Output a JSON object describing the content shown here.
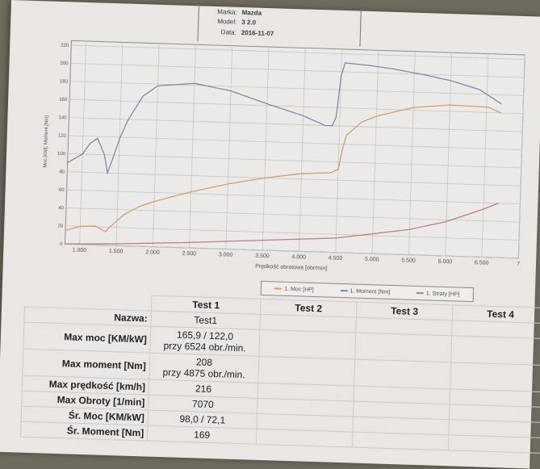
{
  "header": {
    "marka_label": "Marka:",
    "marka_value": "Mazda",
    "model_label": "Model:",
    "model_value": "3 2.0",
    "data_label": "Data:",
    "data_value": "2016-11-07"
  },
  "chart_data": {
    "type": "line",
    "xlabel": "Prędkość obrotowa [obr/min]",
    "ylabel": "Moc [KM], Moment [Nm]",
    "xlim": [
      800,
      7000
    ],
    "ylim": [
      0,
      225
    ],
    "x_ticks": [
      "1.000",
      "1.500",
      "2.000",
      "2.500",
      "3.000",
      "3.500",
      "4.000",
      "4.500",
      "5.000",
      "5.500",
      "6.000",
      "6.500",
      "7"
    ],
    "x_tick_values": [
      1000,
      1500,
      2000,
      2500,
      3000,
      3500,
      4000,
      4500,
      5000,
      5500,
      6000,
      6500,
      7000
    ],
    "y_ticks": [
      "0",
      "20",
      "40",
      "60",
      "80",
      "100",
      "120",
      "140",
      "160",
      "180",
      "200",
      "220"
    ],
    "y_tick_values": [
      0,
      20,
      40,
      60,
      80,
      100,
      120,
      140,
      160,
      180,
      200,
      220
    ],
    "grid": true,
    "legend_position": "bottom",
    "series": [
      {
        "name": "1. Moc [HP]",
        "color": "#c9a070",
        "x": [
          800,
          1000,
          1200,
          1350,
          1400,
          1600,
          1800,
          2000,
          2500,
          3000,
          3500,
          4000,
          4400,
          4500,
          4550,
          4600,
          4800,
          5000,
          5500,
          6000,
          6524,
          6700
        ],
        "y": [
          15,
          20,
          21,
          15,
          20,
          35,
          44,
          50,
          62,
          72,
          80,
          86,
          88,
          92,
          115,
          130,
          145,
          152,
          163,
          167,
          166,
          160
        ]
      },
      {
        "name": "1. Moment [Nm]",
        "color": "#7e8aa6",
        "x": [
          800,
          1000,
          1100,
          1200,
          1300,
          1350,
          1400,
          1500,
          1600,
          1800,
          2000,
          2500,
          3000,
          3500,
          4000,
          4300,
          4400,
          4450,
          4500,
          4550,
          4700,
          4875,
          5200,
          5600,
          6000,
          6400,
          6700
        ],
        "y": [
          90,
          100,
          112,
          118,
          100,
          80,
          92,
          118,
          138,
          166,
          178,
          182,
          175,
          162,
          150,
          140,
          140,
          150,
          195,
          210,
          209,
          208,
          205,
          200,
          194,
          185,
          170
        ]
      },
      {
        "name": "1. Straty [HP]",
        "color": "#b58080",
        "x": [
          800,
          1500,
          2500,
          3500,
          4500,
          5500,
          6000,
          6500,
          6700
        ],
        "y": [
          0,
          2,
          6,
          11,
          16,
          28,
          38,
          53,
          60
        ]
      }
    ]
  },
  "table": {
    "columns": [
      "",
      "Test 1",
      "Test 2",
      "Test 3",
      "Test 4"
    ],
    "rows": [
      {
        "label": "Nazwa:",
        "value": "Test1",
        "sub": ""
      },
      {
        "label": "Max moc [KM/kW]",
        "value": "165,9 / 122,0",
        "sub": "przy 6524 obr./min."
      },
      {
        "label": "Max moment [Nm]",
        "value": "208",
        "sub": "przy 4875 obr./min."
      },
      {
        "label": "Max prędkość [km/h]",
        "value": "216",
        "sub": ""
      },
      {
        "label": "Max Obroty [1/min]",
        "value": "7070",
        "sub": ""
      },
      {
        "label": "Śr. Moc [KM/kW]",
        "value": "98,0 / 72,1",
        "sub": ""
      },
      {
        "label": "Śr. Moment [Nm]",
        "value": "169",
        "sub": ""
      }
    ]
  }
}
